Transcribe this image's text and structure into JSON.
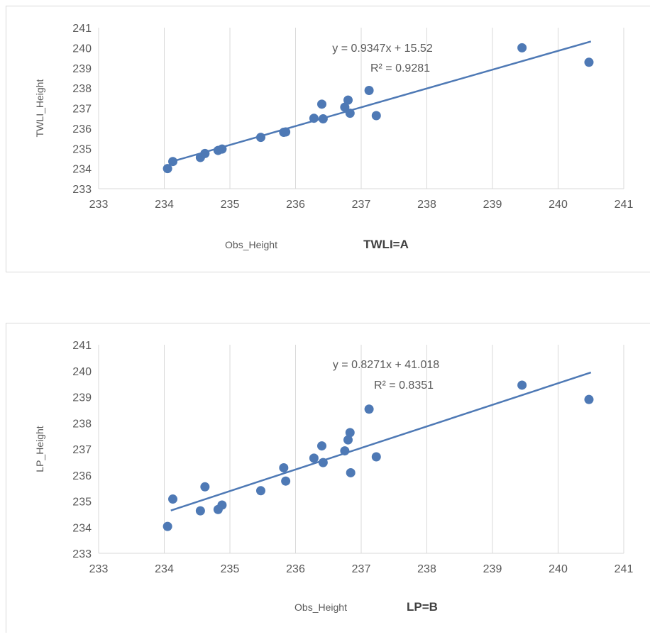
{
  "chart_data": [
    {
      "type": "scatter",
      "ylabel": "TWLI_Height",
      "xlabel": "Obs_Height",
      "caption": "TWLI=A",
      "xlim": [
        233,
        241
      ],
      "ylim": [
        233,
        241
      ],
      "xticks": [
        "233",
        "234",
        "235",
        "236",
        "237",
        "238",
        "239",
        "240",
        "241"
      ],
      "yticks": [
        "233",
        "234",
        "235",
        "236",
        "237",
        "238",
        "239",
        "240",
        "241"
      ],
      "grid": "vertical",
      "color": "#4e79b5",
      "trendline": {
        "slope": 0.9347,
        "intercept": 15.52,
        "x_range": [
          234.1,
          240.5
        ]
      },
      "equation": "y = 0.9347x + 15.52",
      "r2": "R² = 0.9281",
      "points": [
        {
          "x": 234.05,
          "y": 234.0
        },
        {
          "x": 234.13,
          "y": 234.35
        },
        {
          "x": 234.55,
          "y": 234.55
        },
        {
          "x": 234.62,
          "y": 234.75
        },
        {
          "x": 234.82,
          "y": 234.9
        },
        {
          "x": 234.88,
          "y": 234.97
        },
        {
          "x": 235.47,
          "y": 235.55
        },
        {
          "x": 235.82,
          "y": 235.8
        },
        {
          "x": 235.85,
          "y": 235.82
        },
        {
          "x": 236.28,
          "y": 236.5
        },
        {
          "x": 236.4,
          "y": 237.2
        },
        {
          "x": 236.42,
          "y": 236.47
        },
        {
          "x": 236.75,
          "y": 237.05
        },
        {
          "x": 236.8,
          "y": 237.4
        },
        {
          "x": 236.83,
          "y": 236.75
        },
        {
          "x": 237.12,
          "y": 237.88
        },
        {
          "x": 237.23,
          "y": 236.63
        },
        {
          "x": 239.45,
          "y": 240.0
        },
        {
          "x": 240.47,
          "y": 239.28
        }
      ]
    },
    {
      "type": "scatter",
      "ylabel": "LP_Height",
      "xlabel": "Obs_Height",
      "caption": "LP=B",
      "xlim": [
        233,
        241
      ],
      "ylim": [
        233,
        241
      ],
      "xticks": [
        "233",
        "234",
        "235",
        "236",
        "237",
        "238",
        "239",
        "240",
        "241"
      ],
      "yticks": [
        "233",
        "234",
        "235",
        "236",
        "237",
        "238",
        "239",
        "240",
        "241"
      ],
      "grid": "vertical",
      "color": "#4e79b5",
      "trendline": {
        "slope": 0.8271,
        "intercept": 41.018,
        "x_range": [
          234.1,
          240.5
        ]
      },
      "equation": "y = 0.8271x + 41.018",
      "r2": "R² = 0.8351",
      "points": [
        {
          "x": 234.05,
          "y": 234.03
        },
        {
          "x": 234.13,
          "y": 235.08
        },
        {
          "x": 234.55,
          "y": 234.63
        },
        {
          "x": 234.62,
          "y": 235.55
        },
        {
          "x": 234.82,
          "y": 234.68
        },
        {
          "x": 234.88,
          "y": 234.85
        },
        {
          "x": 235.47,
          "y": 235.4
        },
        {
          "x": 235.82,
          "y": 236.28
        },
        {
          "x": 235.85,
          "y": 235.77
        },
        {
          "x": 236.28,
          "y": 236.65
        },
        {
          "x": 236.4,
          "y": 237.12
        },
        {
          "x": 236.42,
          "y": 236.48
        },
        {
          "x": 236.75,
          "y": 236.93
        },
        {
          "x": 236.8,
          "y": 237.35
        },
        {
          "x": 236.83,
          "y": 237.63
        },
        {
          "x": 236.84,
          "y": 236.09
        },
        {
          "x": 237.12,
          "y": 238.53
        },
        {
          "x": 237.23,
          "y": 236.7
        },
        {
          "x": 239.45,
          "y": 239.45
        },
        {
          "x": 240.47,
          "y": 238.9
        }
      ]
    }
  ]
}
